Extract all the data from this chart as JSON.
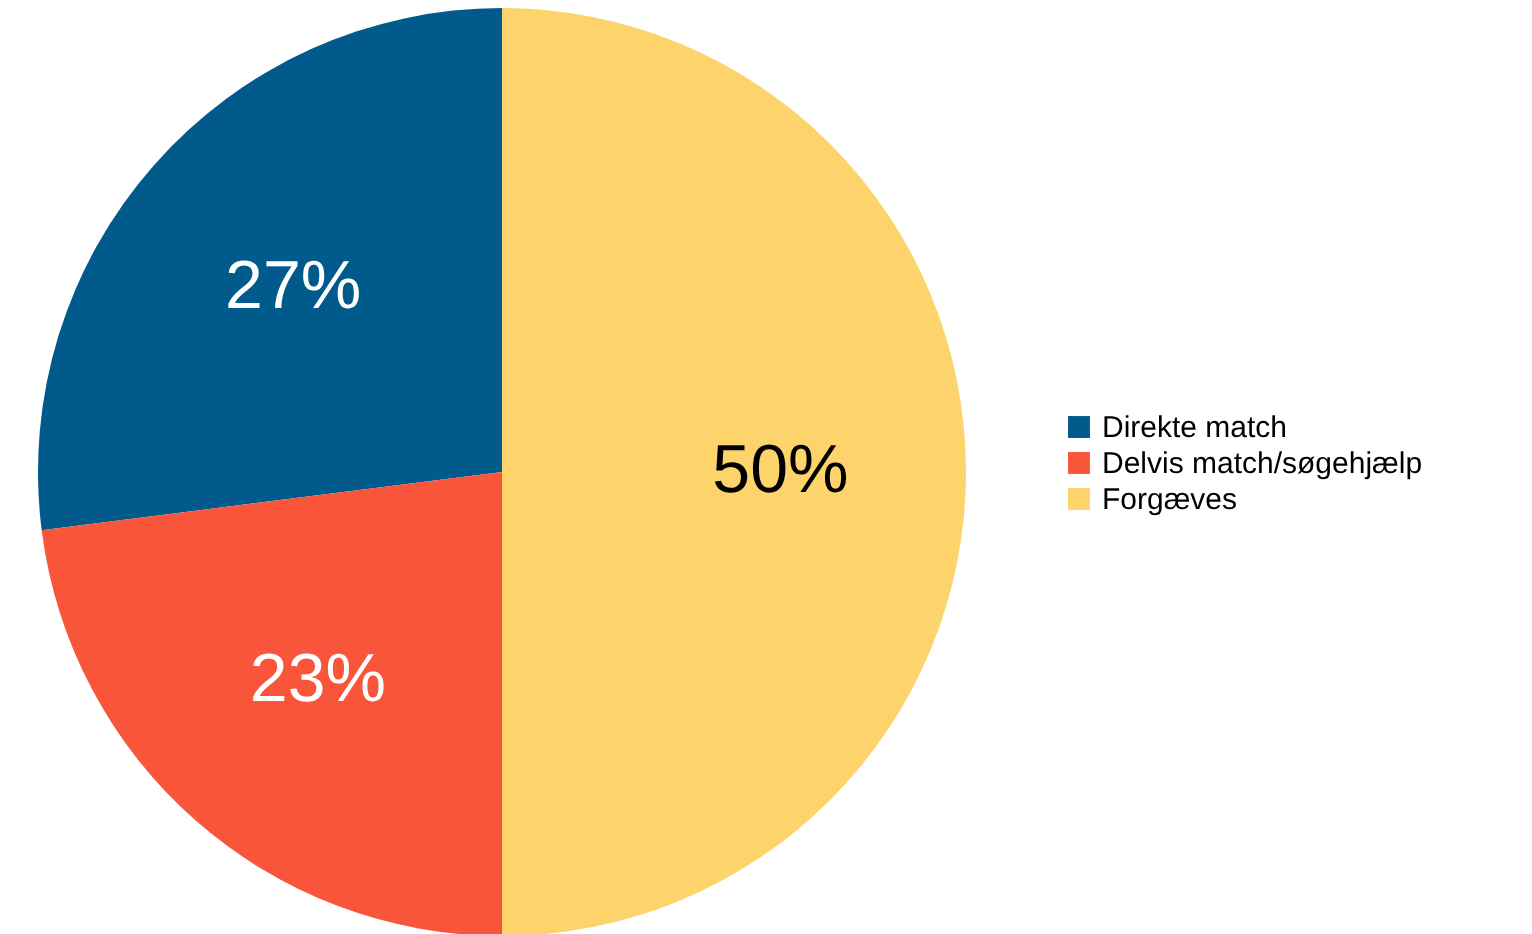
{
  "chart_data": {
    "type": "pie",
    "categories": [
      "Direkte match",
      "Delvis match/søgehjælp",
      "Forgæves"
    ],
    "values": [
      27,
      23,
      50
    ],
    "colors": [
      "#005a8c",
      "#f9553a",
      "#fdd36b"
    ],
    "value_labels": [
      "27%",
      "23%",
      "50%"
    ],
    "legend": "right"
  }
}
